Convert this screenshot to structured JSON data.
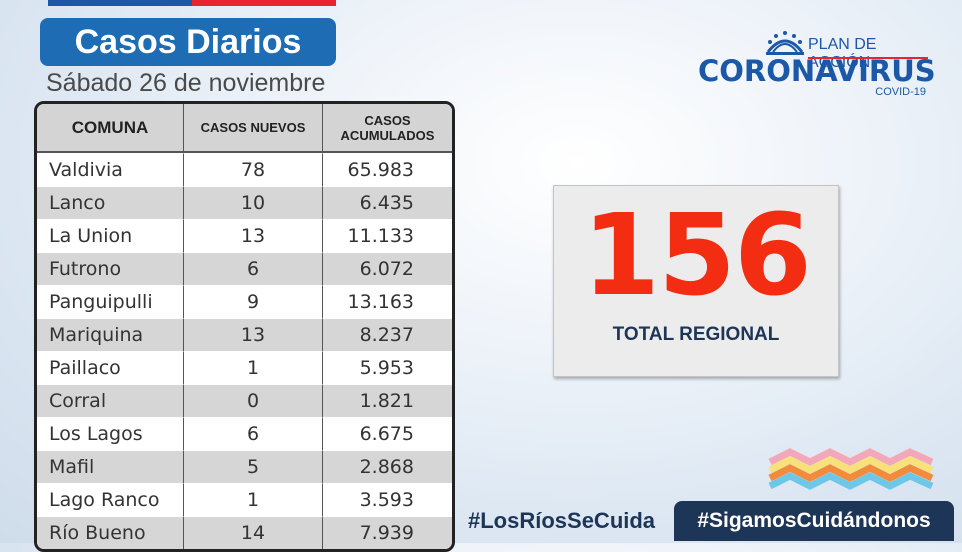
{
  "header": {
    "title": "Casos Diarios",
    "date": "Sábado 26 de noviembre"
  },
  "table": {
    "headers": [
      "COMUNA",
      "CASOS NUEVOS",
      "CASOS ACUMULADOS"
    ],
    "rows": [
      {
        "comuna": "Valdivia",
        "nuevos": "78",
        "acumulados": "65.983"
      },
      {
        "comuna": "Lanco",
        "nuevos": "10",
        "acumulados": "6.435"
      },
      {
        "comuna": "La Union",
        "nuevos": "13",
        "acumulados": "11.133"
      },
      {
        "comuna": "Futrono",
        "nuevos": "6",
        "acumulados": "6.072"
      },
      {
        "comuna": "Panguipulli",
        "nuevos": "9",
        "acumulados": "13.163"
      },
      {
        "comuna": "Mariquina",
        "nuevos": "13",
        "acumulados": "8.237"
      },
      {
        "comuna": "Paillaco",
        "nuevos": "1",
        "acumulados": "5.953"
      },
      {
        "comuna": "Corral",
        "nuevos": "0",
        "acumulados": "1.821"
      },
      {
        "comuna": "Los Lagos",
        "nuevos": "6",
        "acumulados": "6.675"
      },
      {
        "comuna": "Mafil",
        "nuevos": "5",
        "acumulados": "2.868"
      },
      {
        "comuna": "Lago Ranco",
        "nuevos": "1",
        "acumulados": "3.593"
      },
      {
        "comuna": "Río Bueno",
        "nuevos": "14",
        "acumulados": "7.939"
      }
    ]
  },
  "logo": {
    "plan": "PLAN DE ACCIÓN",
    "name": "CORONAVIRUS",
    "sub": "COVID-19"
  },
  "total": {
    "value": "156",
    "label": "TOTAL REGIONAL"
  },
  "hashtags": {
    "left": "#LosRíosSeCuida",
    "right": "#SigamosCuidándonos"
  },
  "colors": {
    "title_bg": "#1e6cb4",
    "total_red": "#f22d12",
    "navy": "#1d3557",
    "brand_blue": "#1b58a7",
    "brand_red": "#e8252b"
  }
}
